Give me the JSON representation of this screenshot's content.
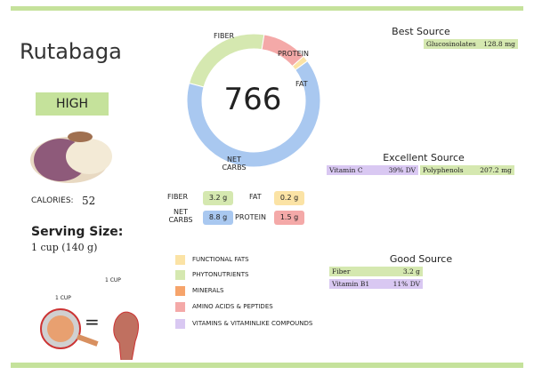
{
  "title": "Rutabaga",
  "level": "HIGH",
  "calories_label": "CALORIES:",
  "calories": 52,
  "serving_title": "Serving Size:",
  "serving": "1 cup (140 g)",
  "cup_label": "1 CUP",
  "fist_label": "1 CUP",
  "equals": "=",
  "donut_center": 766,
  "macros": [
    {
      "name": "FIBER",
      "value": 3.2,
      "label": "3.2 g",
      "color": "#d5e8b0"
    },
    {
      "name": "PROTEIN",
      "value": 1.5,
      "label": "1.5 g",
      "color": "#f4a9a8"
    },
    {
      "name": "FAT",
      "value": 0.2,
      "label": "0.2 g",
      "color": "#fbe3a5"
    },
    {
      "name": "NET CARBS",
      "value": 8.8,
      "label": "8.8 g",
      "color": "#a9c8f0"
    }
  ],
  "legend": [
    {
      "name": "FUNCTIONAL FATS",
      "color": "#fbe3a5"
    },
    {
      "name": "PHYTONUTRIENTS",
      "color": "#d5e8b0"
    },
    {
      "name": "MINERALS",
      "color": "#f6a46b"
    },
    {
      "name": "AMINO ACIDS & PEPTIDES",
      "color": "#f4a9a8"
    },
    {
      "name": "VITAMINS & VITAMINLIKE COMPOUNDS",
      "color": "#d9c8f2"
    }
  ],
  "best_source": {
    "title": "Best Source",
    "items": [
      {
        "name": "Glucosinolates",
        "amount": "128.8 mg",
        "color": "#d5e8b0"
      }
    ]
  },
  "excellent_source": {
    "title": "Excellent Source",
    "items": [
      {
        "name": "Vitamin C",
        "amount": "39% DV",
        "color": "#d9c8f2"
      },
      {
        "name": "Polyphenols",
        "amount": "207.2 mg",
        "color": "#d5e8b0"
      }
    ]
  },
  "good_source": {
    "title": "Good Source",
    "items": [
      {
        "name": "Fiber",
        "amount": "3.2 g",
        "color": "#d5e8b0"
      },
      {
        "name": "Vitamin B1",
        "amount": "11% DV",
        "color": "#d9c8f2"
      }
    ]
  }
}
